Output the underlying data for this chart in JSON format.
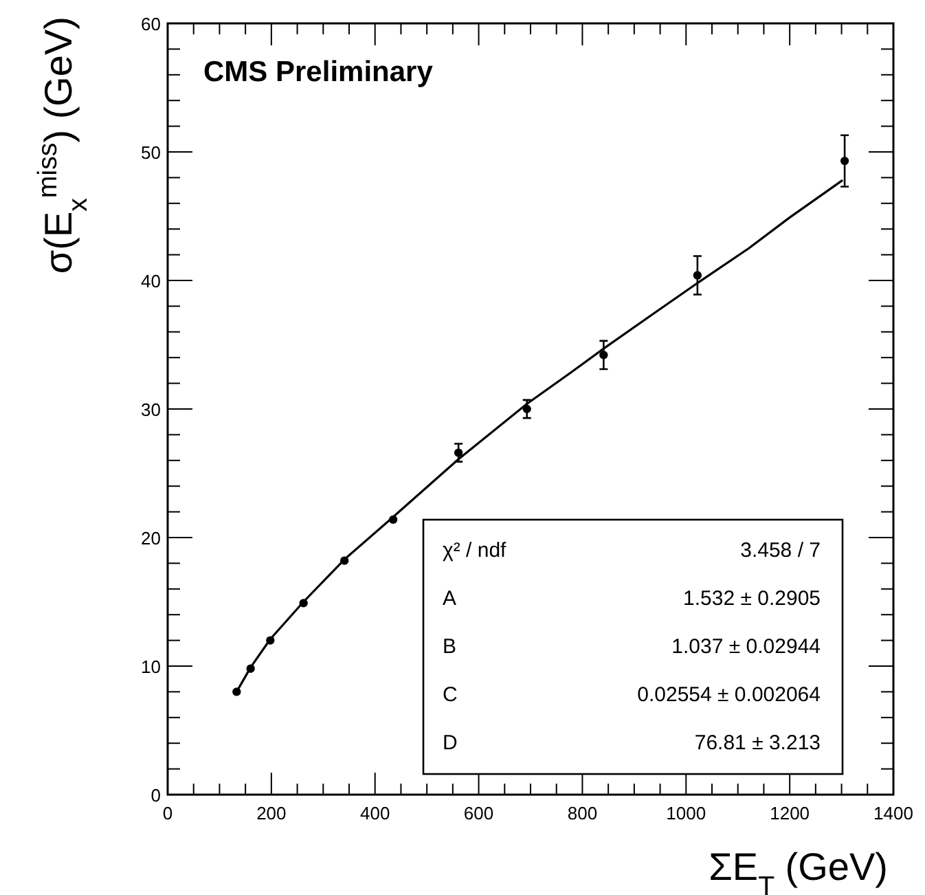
{
  "chart_data": {
    "type": "scatter",
    "xlabel": "ΣE$_{T}$ (GeV)",
    "ylabel": "σ(E$_{x}$$^{miss}$) (GeV)",
    "xlim": [
      0,
      1400
    ],
    "ylim": [
      0,
      60
    ],
    "xticks": [
      0,
      {
        "value": 50,
        "label": null
      },
      {
        "value": 100,
        "label": null
      },
      {
        "value": 150,
        "label": null
      },
      200,
      {
        "value": 250,
        "label": null
      },
      {
        "value": 300,
        "label": null
      },
      {
        "value": 350,
        "label": null
      },
      400,
      {
        "value": 450,
        "label": null
      },
      {
        "value": 500,
        "label": null
      },
      {
        "value": 550,
        "label": null
      },
      600,
      {
        "value": 650,
        "label": null
      },
      {
        "value": 700,
        "label": null
      },
      {
        "value": 750,
        "label": null
      },
      800,
      {
        "value": 850,
        "label": null
      },
      {
        "value": 900,
        "label": null
      },
      {
        "value": 950,
        "label": null
      },
      1000,
      {
        "value": 1050,
        "label": null
      },
      {
        "value": 1100,
        "label": null
      },
      {
        "value": 1150,
        "label": null
      },
      1200,
      {
        "value": 1250,
        "label": null
      },
      {
        "value": 1300,
        "label": null
      },
      {
        "value": 1350,
        "label": null
      },
      1400
    ],
    "yticks": [
      0,
      {
        "value": 2,
        "label": null
      },
      {
        "value": 4,
        "label": null
      },
      {
        "value": 6,
        "label": null
      },
      {
        "value": 8,
        "label": null
      },
      10,
      {
        "value": 12,
        "label": null
      },
      {
        "value": 14,
        "label": null
      },
      {
        "value": 16,
        "label": null
      },
      {
        "value": 18,
        "label": null
      },
      20,
      {
        "value": 22,
        "label": null
      },
      {
        "value": 24,
        "label": null
      },
      {
        "value": 26,
        "label": null
      },
      {
        "value": 28,
        "label": null
      },
      30,
      {
        "value": 32,
        "label": null
      },
      {
        "value": 34,
        "label": null
      },
      {
        "value": 36,
        "label": null
      },
      {
        "value": 38,
        "label": null
      },
      40,
      {
        "value": 42,
        "label": null
      },
      {
        "value": 44,
        "label": null
      },
      {
        "value": 46,
        "label": null
      },
      {
        "value": 48,
        "label": null
      },
      50,
      {
        "value": 52,
        "label": null
      },
      {
        "value": 54,
        "label": null
      },
      {
        "value": 56,
        "label": null
      },
      {
        "value": 58,
        "label": null
      },
      60
    ],
    "marker": "circle",
    "grid": false,
    "series": [
      {
        "color": "#000000",
        "x": [
          133,
          160,
          198,
          262,
          341,
          435,
          561,
          693,
          841,
          1022,
          1306
        ],
        "values": [
          8.0,
          9.8,
          12.0,
          14.9,
          18.2,
          21.4,
          26.6,
          30.0,
          34.2,
          40.4,
          49.3
        ],
        "errors": [
          null,
          null,
          null,
          null,
          null,
          null,
          0.7,
          0.7,
          1.1,
          1.5,
          2.0
        ]
      },
      {
        "type": "line",
        "color": "#000000",
        "marker": "none",
        "line_style": "solid",
        "x": [
          133,
          160,
          198,
          262,
          341,
          435,
          561,
          693,
          780,
          841,
          933,
          1022,
          1121,
          1200,
          1302
        ],
        "values": [
          8.0,
          9.9,
          12.1,
          15.0,
          18.3,
          21.6,
          26.1,
          30.4,
          32.9,
          34.7,
          37.3,
          39.8,
          42.5,
          44.9,
          47.8
        ]
      }
    ],
    "annotations": [
      "CMS Preliminary",
      "χ² / ndf",
      "3.458 / 7",
      "A",
      "1.532 ± 0.2905",
      "B",
      "1.037 ± 0.02944",
      "C",
      "0.02554 ± 0.002064",
      "D",
      "76.81 ± 3.213"
    ]
  }
}
